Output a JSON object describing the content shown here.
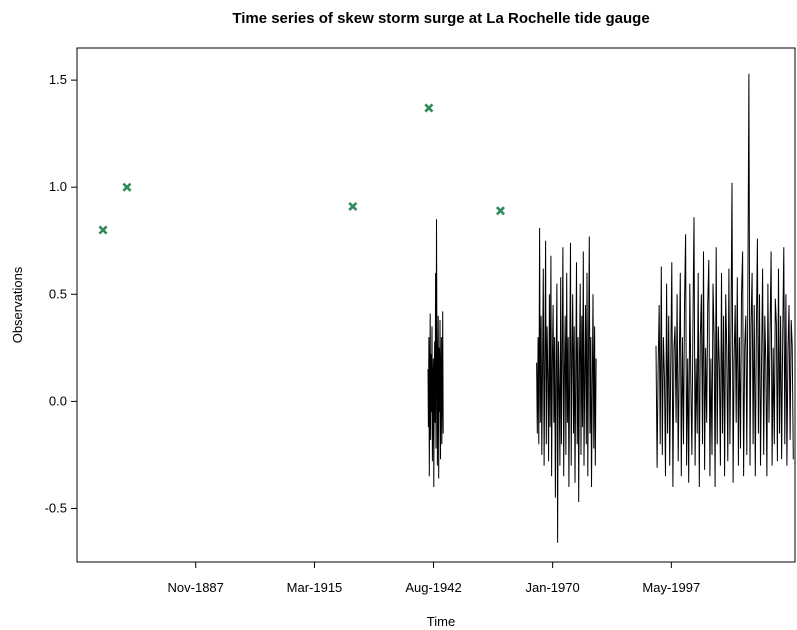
{
  "chart_data": {
    "type": "scatter",
    "title": "Time series of skew storm surge at La Rochelle tide gauge",
    "xlabel": "Time",
    "ylabel": "Observations",
    "xlim": [
      1860.5,
      2025.8
    ],
    "ylim": [
      -0.75,
      1.65
    ],
    "x_ticks": [
      {
        "label": "Nov-1887",
        "x": 1887.83
      },
      {
        "label": "Mar-1915",
        "x": 1915.17
      },
      {
        "label": "Aug-1942",
        "x": 1942.58
      },
      {
        "label": "Jan-1970",
        "x": 1970.0
      },
      {
        "label": "May-1997",
        "x": 1997.33
      }
    ],
    "y_ticks": [
      {
        "label": "-0.5",
        "y": -0.5
      },
      {
        "label": "0.0",
        "y": 0.0
      },
      {
        "label": "0.5",
        "y": 0.5
      },
      {
        "label": "1.0",
        "y": 1.0
      },
      {
        "label": "1.5",
        "y": 1.5
      }
    ],
    "grid": false,
    "colors": {
      "annual_max": "#2e8b57",
      "series": "#000000"
    },
    "annual_maxima": [
      {
        "x": 1866.5,
        "y": 0.8
      },
      {
        "x": 1872.0,
        "y": 1.0
      },
      {
        "x": 1924.0,
        "y": 0.91
      },
      {
        "x": 1941.5,
        "y": 1.37
      },
      {
        "x": 1958.0,
        "y": 0.89
      }
    ],
    "series": [
      {
        "segments": [
          {
            "x_start": 1941.3,
            "x_end": 1944.8,
            "values": [
              0.15,
              -0.12,
              0.3,
              -0.35,
              0.1,
              0.41,
              -0.18,
              0.22,
              -0.05,
              0.35,
              -0.28,
              0.05,
              0.2,
              -0.4,
              0.12,
              0.28,
              -0.1,
              0.6,
              -0.22,
              0.85,
              0.3,
              -0.3,
              0.15,
              0.4,
              -0.36,
              0.25,
              -0.05,
              0.38,
              -0.27,
              0.1,
              0.3,
              -0.2,
              0.05,
              0.42,
              -0.15
            ]
          },
          {
            "x_start": 1966.3,
            "x_end": 1980.0,
            "values": [
              0.18,
              -0.15,
              0.3,
              -0.2,
              0.81,
              -0.1,
              0.4,
              -0.25,
              0.2,
              0.62,
              -0.3,
              0.15,
              0.75,
              -0.2,
              0.35,
              0.1,
              -0.28,
              0.5,
              -0.12,
              0.68,
              -0.35,
              0.2,
              0.45,
              -0.1,
              0.3,
              -0.45,
              0.15,
              0.55,
              -0.66,
              0.28,
              0.05,
              -0.3,
              0.58,
              -0.2,
              0.25,
              0.72,
              -0.35,
              0.12,
              0.4,
              -0.25,
              0.6,
              -0.1,
              0.3,
              -0.4,
              0.18,
              0.74,
              -0.3,
              0.22,
              0.5,
              -0.15,
              0.35,
              -0.38,
              0.1,
              0.65,
              -0.2,
              0.3,
              -0.47,
              0.2,
              0.55,
              -0.25,
              0.4,
              -0.12,
              0.7,
              -0.3,
              0.15,
              0.45,
              -0.2,
              0.6,
              -0.35,
              0.25,
              0.77,
              -0.15,
              0.3,
              -0.4,
              0.1,
              0.5,
              -0.22,
              0.35,
              -0.3,
              0.2
            ]
          },
          {
            "x_start": 1993.8,
            "x_end": 2025.4,
            "values": [
              0.26,
              -0.31,
              0.15,
              0.45,
              -0.2,
              0.63,
              -0.25,
              0.3,
              0.1,
              -0.35,
              0.55,
              -0.15,
              0.4,
              -0.3,
              0.2,
              0.65,
              -0.4,
              0.25,
              0.35,
              -0.1,
              0.5,
              -0.28,
              0.15,
              0.6,
              -0.35,
              0.3,
              -0.2,
              0.45,
              0.78,
              -0.3,
              0.2,
              -0.38,
              0.55,
              0.1,
              -0.25,
              0.4,
              0.86,
              -0.3,
              0.2,
              -0.15,
              0.6,
              -0.4,
              0.3,
              0.5,
              -0.2,
              0.7,
              -0.32,
              0.25,
              -0.1,
              0.45,
              0.66,
              -0.35,
              0.2,
              -0.25,
              0.55,
              0.3,
              -0.4,
              0.72,
              -0.2,
              0.35,
              0.15,
              -0.3,
              0.6,
              -0.15,
              0.4,
              -0.35,
              0.5,
              0.25,
              -0.28,
              0.62,
              -0.2,
              0.35,
              1.02,
              -0.38,
              0.2,
              0.45,
              -0.1,
              0.58,
              -0.3,
              0.3,
              -0.22,
              0.5,
              0.7,
              -0.35,
              0.25,
              0.4,
              -0.25,
              0.55,
              1.53,
              -0.3,
              0.35,
              0.6,
              -0.2,
              0.45,
              -0.35,
              0.3,
              0.76,
              -0.15,
              0.5,
              -0.3,
              0.2,
              0.62,
              -0.25,
              0.4,
              0.18,
              -0.35,
              0.55,
              -0.1,
              0.3,
              0.7,
              -0.3,
              0.25,
              -0.2,
              0.48,
              0.36,
              -0.28,
              0.62,
              -0.15,
              0.4,
              -0.27,
              0.3,
              0.72,
              -0.2,
              0.5,
              -0.3,
              0.25,
              0.45,
              -0.18,
              0.38,
              0.26,
              -0.27
            ]
          }
        ]
      }
    ]
  }
}
